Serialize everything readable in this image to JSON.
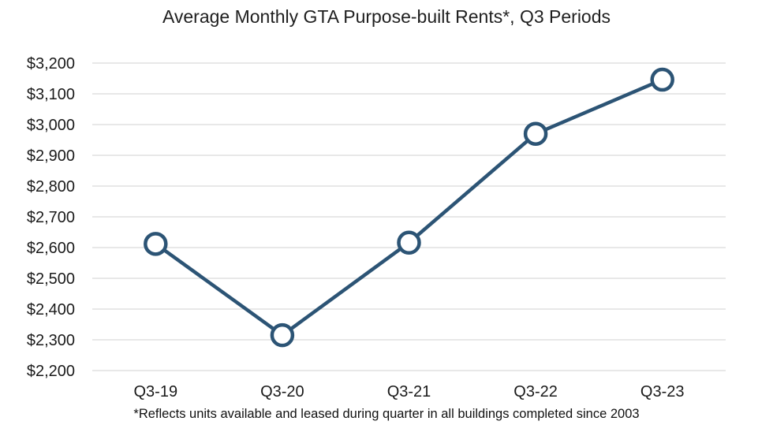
{
  "chart_data": {
    "type": "line",
    "title": "Average Monthly GTA Purpose-built Rents*, Q3 Periods",
    "footnote": "*Reflects units available and leased during quarter in all buildings completed since 2003",
    "categories": [
      "Q3-19",
      "Q3-20",
      "Q3-21",
      "Q3-22",
      "Q3-23"
    ],
    "series": [
      {
        "values": [
          2612,
          2315,
          2616,
          2970,
          3146
        ]
      }
    ],
    "y_ticks": [
      "$2,200",
      "$2,300",
      "$2,400",
      "$2,500",
      "$2,600",
      "$2,700",
      "$2,800",
      "$2,900",
      "$3,000",
      "$3,100",
      "$3,200"
    ],
    "ylim": [
      2200,
      3200
    ],
    "grid": true,
    "legend": "none",
    "colors": {
      "line": "#2c5475",
      "grid": "#d9d9d9",
      "marker_fill": "#ffffff"
    }
  }
}
